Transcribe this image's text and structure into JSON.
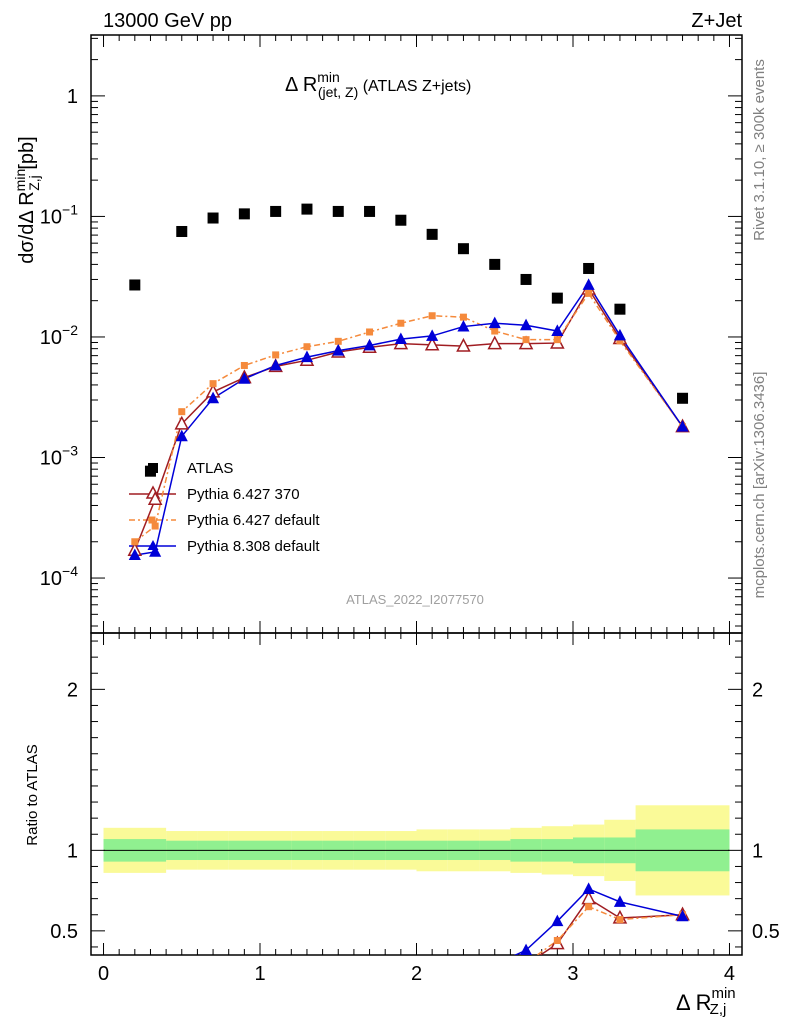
{
  "header": {
    "energy_label": "13000 GeV pp",
    "process_label": "Z+Jet"
  },
  "side": {
    "rivet_label": "Rivet 3.1.10, ≥ 300k events",
    "mcplots_label": "mcplots.cern.ch [arXiv:1306.3436]"
  },
  "chart_data": [
    {
      "type": "scatter",
      "title": "Δ R^min(jet, Z) (ATLAS Z+jets)",
      "ylabel": "dσ/dΔ R^min_Z,j [pb]",
      "xlabel": "Δ R^min_Z,j",
      "watermark": "ATLAS_2022_I2077570",
      "xlim": [
        -0.08,
        4.08
      ],
      "ylim": [
        3.5e-05,
        3.2
      ],
      "yscale": "log",
      "yticks": [
        {
          "value": 1,
          "label": "1"
        },
        {
          "value": 0.1,
          "label": "10^-1"
        },
        {
          "value": 0.01,
          "label": "10^-2"
        },
        {
          "value": 0.001,
          "label": "10^-3"
        },
        {
          "value": 0.0001,
          "label": "10^-4"
        }
      ],
      "legend_position": "lower-left",
      "series": [
        {
          "name": "ATLAS",
          "color": "#000000",
          "marker": "square",
          "points": [
            {
              "x": 0.2,
              "y": 0.027
            },
            {
              "x": 0.3,
              "y": 0.00077
            },
            {
              "x": 0.5,
              "y": 0.075
            },
            {
              "x": 0.7,
              "y": 0.097
            },
            {
              "x": 0.9,
              "y": 0.105
            },
            {
              "x": 1.1,
              "y": 0.11
            },
            {
              "x": 1.3,
              "y": 0.115
            },
            {
              "x": 1.5,
              "y": 0.11
            },
            {
              "x": 1.7,
              "y": 0.11
            },
            {
              "x": 1.9,
              "y": 0.093
            },
            {
              "x": 2.1,
              "y": 0.071
            },
            {
              "x": 2.3,
              "y": 0.054
            },
            {
              "x": 2.5,
              "y": 0.04
            },
            {
              "x": 2.7,
              "y": 0.03
            },
            {
              "x": 2.9,
              "y": 0.021
            },
            {
              "x": 3.1,
              "y": 0.037
            },
            {
              "x": 3.3,
              "y": 0.017
            },
            {
              "x": 3.7,
              "y": 0.0031
            }
          ]
        },
        {
          "name": "Pythia 6.427 370",
          "color": "#a01d22",
          "marker": "open-triangle",
          "linestyle": "solid",
          "points": [
            {
              "x": 0.2,
              "y": 0.00017
            },
            {
              "x": 0.33,
              "y": 0.00045
            },
            {
              "x": 0.5,
              "y": 0.0019
            },
            {
              "x": 0.7,
              "y": 0.0035
            },
            {
              "x": 0.9,
              "y": 0.0046
            },
            {
              "x": 1.1,
              "y": 0.0057
            },
            {
              "x": 1.3,
              "y": 0.0064
            },
            {
              "x": 1.5,
              "y": 0.0075
            },
            {
              "x": 1.7,
              "y": 0.0082
            },
            {
              "x": 1.9,
              "y": 0.0088
            },
            {
              "x": 2.1,
              "y": 0.0086
            },
            {
              "x": 2.3,
              "y": 0.0084
            },
            {
              "x": 2.5,
              "y": 0.0088
            },
            {
              "x": 2.7,
              "y": 0.0088
            },
            {
              "x": 2.9,
              "y": 0.0089
            },
            {
              "x": 3.1,
              "y": 0.025
            },
            {
              "x": 3.3,
              "y": 0.0097
            },
            {
              "x": 3.7,
              "y": 0.0018
            }
          ]
        },
        {
          "name": "Pythia 6.427 default",
          "color": "#f58a3c",
          "marker": "square",
          "linestyle": "dashdot",
          "points": [
            {
              "x": 0.2,
              "y": 0.0002
            },
            {
              "x": 0.33,
              "y": 0.00027
            },
            {
              "x": 0.5,
              "y": 0.0024
            },
            {
              "x": 0.7,
              "y": 0.0041
            },
            {
              "x": 0.9,
              "y": 0.0058
            },
            {
              "x": 1.1,
              "y": 0.0071
            },
            {
              "x": 1.3,
              "y": 0.0083
            },
            {
              "x": 1.5,
              "y": 0.0092
            },
            {
              "x": 1.7,
              "y": 0.011
            },
            {
              "x": 1.9,
              "y": 0.013
            },
            {
              "x": 2.1,
              "y": 0.015
            },
            {
              "x": 2.3,
              "y": 0.0146
            },
            {
              "x": 2.5,
              "y": 0.0112
            },
            {
              "x": 2.7,
              "y": 0.0095
            },
            {
              "x": 2.9,
              "y": 0.0095
            },
            {
              "x": 3.1,
              "y": 0.023
            },
            {
              "x": 3.3,
              "y": 0.0093
            },
            {
              "x": 3.7,
              "y": 0.0018
            }
          ]
        },
        {
          "name": "Pythia 8.308 default",
          "color": "#0000d8",
          "marker": "triangle",
          "linestyle": "solid",
          "points": [
            {
              "x": 0.2,
              "y": 0.000155
            },
            {
              "x": 0.33,
              "y": 0.000165
            },
            {
              "x": 0.5,
              "y": 0.0015
            },
            {
              "x": 0.7,
              "y": 0.0031
            },
            {
              "x": 0.9,
              "y": 0.0045
            },
            {
              "x": 1.1,
              "y": 0.0058
            },
            {
              "x": 1.3,
              "y": 0.0068
            },
            {
              "x": 1.5,
              "y": 0.0077
            },
            {
              "x": 1.7,
              "y": 0.0085
            },
            {
              "x": 1.9,
              "y": 0.0096
            },
            {
              "x": 2.1,
              "y": 0.0102
            },
            {
              "x": 2.3,
              "y": 0.0122
            },
            {
              "x": 2.5,
              "y": 0.013
            },
            {
              "x": 2.7,
              "y": 0.0125
            },
            {
              "x": 2.9,
              "y": 0.0112
            },
            {
              "x": 3.1,
              "y": 0.027
            },
            {
              "x": 3.3,
              "y": 0.0103
            },
            {
              "x": 3.7,
              "y": 0.0018
            }
          ]
        }
      ]
    },
    {
      "type": "line",
      "ylabel": "Ratio to ATLAS",
      "xlim": [
        -0.08,
        4.08
      ],
      "ylim": [
        0.35,
        2.35
      ],
      "xticks": [
        0,
        1,
        2,
        3,
        4
      ],
      "yticks": [
        0.5,
        1,
        2
      ],
      "bands": {
        "edges": [
          0,
          0.4,
          0.6,
          0.8,
          1.0,
          1.2,
          1.4,
          1.6,
          1.8,
          2.0,
          2.2,
          2.4,
          2.6,
          2.8,
          3.0,
          3.2,
          3.4,
          4.0
        ],
        "inner": [
          0.07,
          0.06,
          0.06,
          0.06,
          0.06,
          0.06,
          0.06,
          0.06,
          0.06,
          0.06,
          0.06,
          0.06,
          0.07,
          0.07,
          0.08,
          0.08,
          0.13
        ],
        "outer": [
          0.14,
          0.12,
          0.12,
          0.12,
          0.12,
          0.12,
          0.12,
          0.12,
          0.12,
          0.13,
          0.13,
          0.13,
          0.14,
          0.15,
          0.16,
          0.19,
          0.28
        ],
        "inner_color": "#90f090",
        "outer_color": "#fafa98"
      },
      "series": [
        {
          "name": "Pythia 6.427 370",
          "color": "#a01d22",
          "marker": "open-triangle",
          "points": [
            {
              "x": 2.7,
              "y": 0.29
            },
            {
              "x": 2.9,
              "y": 0.42
            },
            {
              "x": 3.1,
              "y": 0.7
            },
            {
              "x": 3.3,
              "y": 0.58
            },
            {
              "x": 3.7,
              "y": 0.6
            }
          ]
        },
        {
          "name": "Pythia 6.427 default",
          "color": "#f58a3c",
          "marker": "square",
          "points": [
            {
              "x": 2.7,
              "y": 0.3
            },
            {
              "x": 2.9,
              "y": 0.44
            },
            {
              "x": 3.1,
              "y": 0.65
            },
            {
              "x": 3.3,
              "y": 0.57
            },
            {
              "x": 3.7,
              "y": 0.6
            }
          ]
        },
        {
          "name": "Pythia 8.308 default",
          "color": "#0000d8",
          "marker": "triangle",
          "points": [
            {
              "x": 2.5,
              "y": 0.29
            },
            {
              "x": 2.7,
              "y": 0.38
            },
            {
              "x": 2.9,
              "y": 0.56
            },
            {
              "x": 3.1,
              "y": 0.76
            },
            {
              "x": 3.3,
              "y": 0.68
            },
            {
              "x": 3.7,
              "y": 0.59
            }
          ]
        }
      ]
    }
  ]
}
